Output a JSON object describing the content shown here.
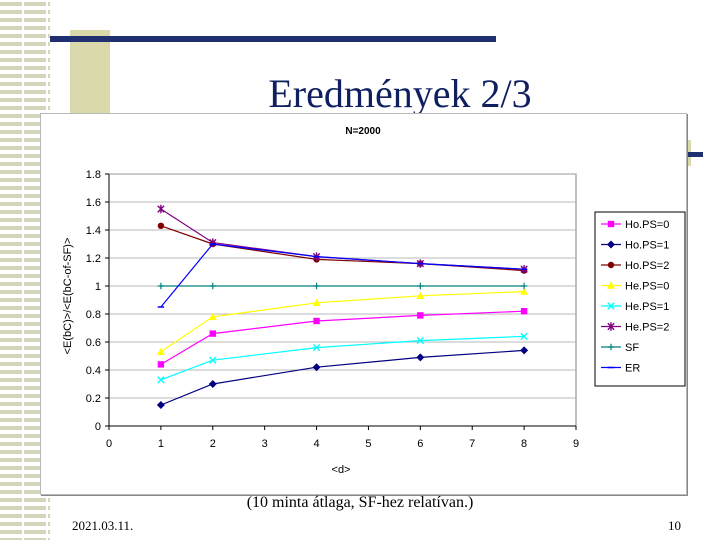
{
  "slide": {
    "title": "Eredmények 2/3",
    "caption": "(10 minta átlaga, SF-hez relatívan.)",
    "date": "2021.03.11.",
    "page": "10"
  },
  "chart_data": {
    "type": "line",
    "title": "N=2000",
    "xlabel": "<d>",
    "ylabel": "<E(bC)>/<E(bC-of-SF)>",
    "xlim": [
      0,
      9
    ],
    "ylim": [
      0,
      1.8
    ],
    "xticks": [
      0,
      1,
      2,
      3,
      4,
      5,
      6,
      7,
      8,
      9
    ],
    "yticks": [
      0,
      0.2,
      0.4,
      0.6,
      0.8,
      1,
      1.2,
      1.4,
      1.6,
      1.8
    ],
    "grid": "horizontal",
    "legend_position": "right",
    "x": [
      1,
      2,
      4,
      6,
      8
    ],
    "series": [
      {
        "name": "Ho.PS=0",
        "color": "#ff00ff",
        "marker": "square",
        "values": [
          0.44,
          0.66,
          0.75,
          0.79,
          0.82
        ]
      },
      {
        "name": "Ho.PS=1",
        "color": "#000080",
        "marker": "diamond",
        "values": [
          0.15,
          0.3,
          0.42,
          0.49,
          0.54
        ]
      },
      {
        "name": "Ho.PS=2",
        "color": "#800000",
        "marker": "circle",
        "values": [
          1.43,
          1.3,
          1.19,
          1.16,
          1.11
        ]
      },
      {
        "name": "He.PS=0",
        "color": "#ffff00",
        "marker": "triangle",
        "values": [
          0.53,
          0.78,
          0.88,
          0.93,
          0.96
        ]
      },
      {
        "name": "He.PS=1",
        "color": "#00ffff",
        "marker": "x",
        "values": [
          0.33,
          0.47,
          0.56,
          0.61,
          0.64
        ]
      },
      {
        "name": "He.PS=2",
        "color": "#800080",
        "marker": "star",
        "values": [
          1.55,
          1.31,
          1.21,
          1.16,
          1.12
        ]
      },
      {
        "name": "SF",
        "color": "#008080",
        "marker": "plus",
        "values": [
          1.0,
          1.0,
          1.0,
          1.0,
          1.0
        ]
      },
      {
        "name": "ER",
        "color": "#0000ff",
        "marker": "dash",
        "values": [
          0.85,
          1.3,
          1.21,
          1.16,
          1.12
        ]
      }
    ]
  }
}
